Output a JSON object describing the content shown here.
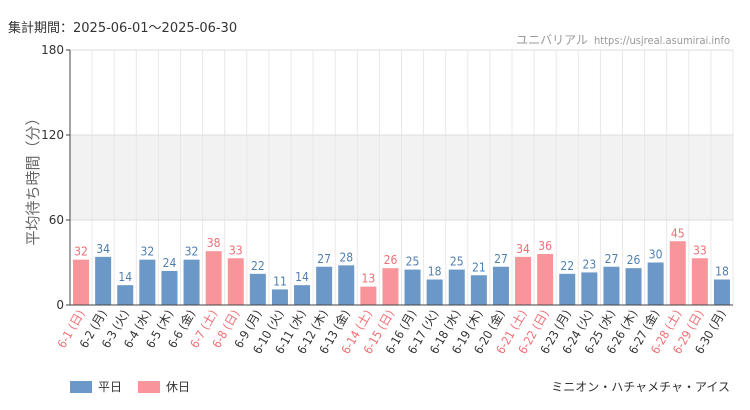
{
  "header": {
    "period": "集計期間：2025-06-01～2025-06-30",
    "credit_name": "ユニバリアル",
    "credit_url": "https://usjreal.asumirai.info"
  },
  "footer": {
    "attraction": "ミニオン・ハチャメチャ・アイス"
  },
  "colors": {
    "weekday": "#6b98c6",
    "holiday": "#f7959a",
    "weekday_label": "#4f7faf",
    "holiday_label": "#ef6f75"
  },
  "chart_data": {
    "type": "bar",
    "ylabel": "平均待ち時間（分）",
    "ylim": [
      0,
      180
    ],
    "yticks": [
      0,
      60,
      120,
      180
    ],
    "shaded_band": [
      60,
      120
    ],
    "legend": [
      {
        "name": "平日",
        "kind": "weekday"
      },
      {
        "name": "休日",
        "kind": "holiday"
      }
    ],
    "categories": [
      "6-1 (日)",
      "6-2 (月)",
      "6-3 (火)",
      "6-4 (水)",
      "6-5 (木)",
      "6-6 (金)",
      "6-7 (土)",
      "6-8 (日)",
      "6-9 (月)",
      "6-10 (火)",
      "6-11 (水)",
      "6-12 (木)",
      "6-13 (金)",
      "6-14 (土)",
      "6-15 (日)",
      "6-16 (月)",
      "6-17 (火)",
      "6-18 (水)",
      "6-19 (木)",
      "6-20 (金)",
      "6-21 (土)",
      "6-22 (日)",
      "6-23 (月)",
      "6-24 (火)",
      "6-25 (水)",
      "6-26 (木)",
      "6-27 (金)",
      "6-28 (土)",
      "6-29 (日)",
      "6-30 (月)"
    ],
    "values": [
      32,
      34,
      14,
      32,
      24,
      32,
      38,
      33,
      22,
      11,
      14,
      27,
      28,
      13,
      26,
      25,
      18,
      25,
      21,
      27,
      34,
      36,
      22,
      23,
      27,
      26,
      30,
      45,
      33,
      18
    ],
    "holiday": [
      true,
      false,
      false,
      false,
      false,
      false,
      true,
      true,
      false,
      false,
      false,
      false,
      false,
      true,
      true,
      false,
      false,
      false,
      false,
      false,
      true,
      true,
      false,
      false,
      false,
      false,
      false,
      true,
      true,
      false
    ]
  }
}
